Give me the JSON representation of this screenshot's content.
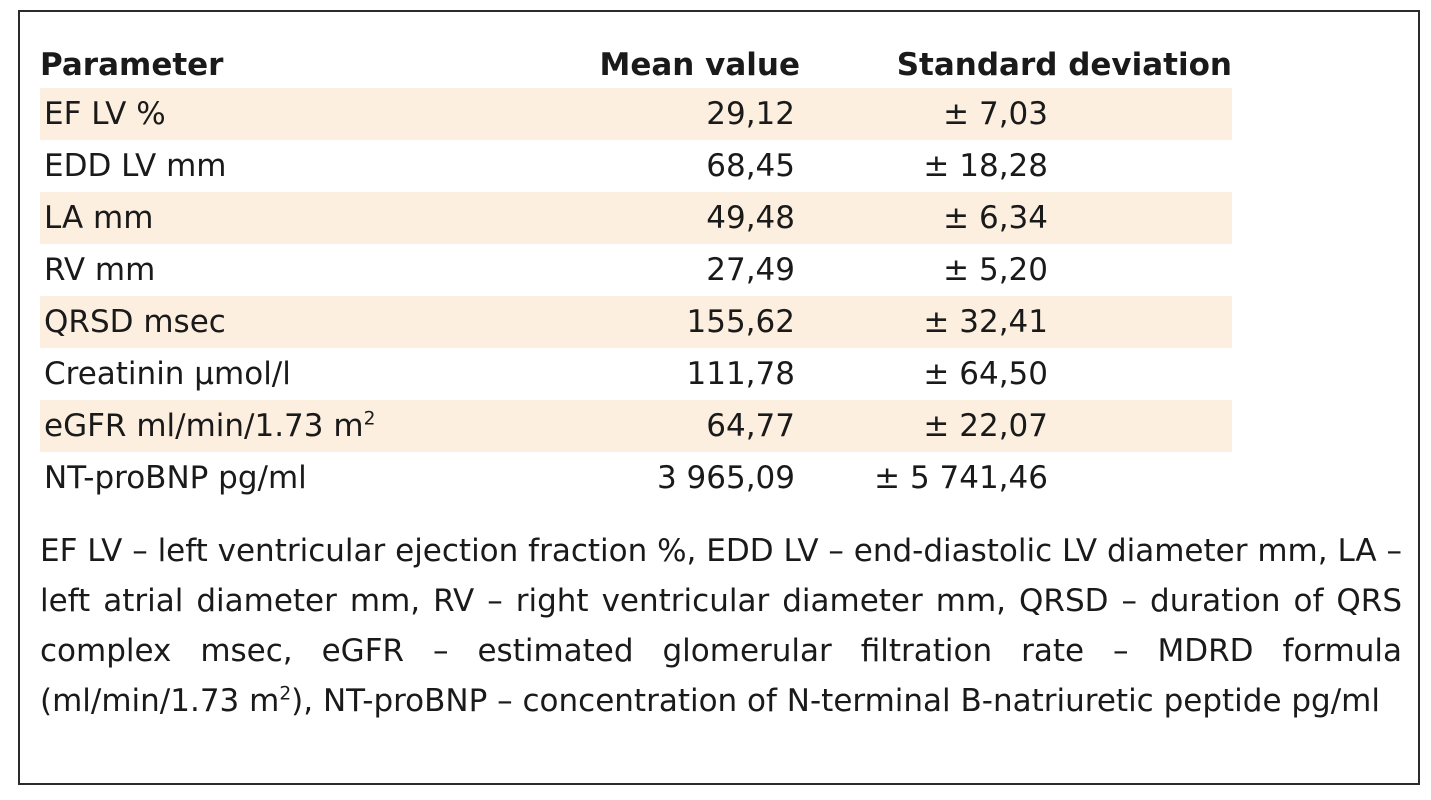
{
  "table": {
    "headers": {
      "parameter": "Parameter",
      "mean": "Mean value",
      "sd": "Standard deviation"
    },
    "rows": [
      {
        "parameter": "EF LV %",
        "sup": "",
        "mean": "29,12",
        "sd": "± 7,03",
        "shaded": true
      },
      {
        "parameter": "EDD LV mm",
        "sup": "",
        "mean": "68,45",
        "sd": "± 18,28",
        "shaded": false
      },
      {
        "parameter": "LA mm",
        "sup": "",
        "mean": "49,48",
        "sd": "± 6,34",
        "shaded": true
      },
      {
        "parameter": "RV mm",
        "sup": "",
        "mean": "27,49",
        "sd": "± 5,20",
        "shaded": false
      },
      {
        "parameter": "QRSD msec",
        "sup": "",
        "mean": "155,62",
        "sd": "± 32,41",
        "shaded": true
      },
      {
        "parameter": "Creatinin µmol/l",
        "sup": "",
        "mean": "111,78",
        "sd": "± 64,50",
        "shaded": false
      },
      {
        "parameter": "eGFR ml/min/1.73 m",
        "sup": "2",
        "mean": "64,77",
        "sd": "± 22,07",
        "shaded": true
      },
      {
        "parameter": "NT-proBNP pg/ml",
        "sup": "",
        "mean": "3 965,09",
        "sd": "± 5 741,46",
        "shaded": false
      }
    ]
  },
  "footnote": {
    "part1": "EF LV – left ventricular ejection fraction %, EDD LV – end-diastolic LV diameter mm, LA – left atrial diameter mm, RV – right ventricular diameter mm, QRSD – duration of QRS complex msec, eGFR – estimated glomerular filtration rate – MDRD formula (ml/min/1.73 m",
    "sup": "2",
    "part2": "), NT-proBNP – concentration of N-terminal B-natriuretic peptide pg/ml"
  }
}
